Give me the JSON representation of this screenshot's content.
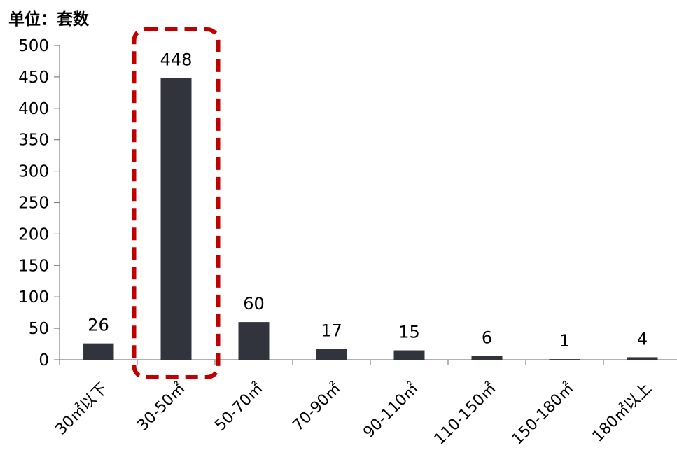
{
  "unit_label": "单位：套数",
  "chart_data": {
    "type": "bar",
    "categories": [
      "30㎡以下",
      "30-50㎡",
      "50-70㎡",
      "70-90㎡",
      "90-110㎡",
      "110-150㎡",
      "150-180㎡",
      "180㎡以上"
    ],
    "values": [
      26,
      448,
      60,
      17,
      15,
      6,
      1,
      4
    ],
    "data_labels": [
      "26",
      "448",
      "60",
      "17",
      "15",
      "6",
      "1",
      "4"
    ],
    "ylim": [
      0,
      500
    ],
    "yticks": [
      0,
      50,
      100,
      150,
      200,
      250,
      300,
      350,
      400,
      450,
      500
    ],
    "highlight_index": 1,
    "colors": {
      "bar": "#31343d",
      "highlight": "#c00000",
      "axis": "#808080"
    },
    "grid": false,
    "legend": "none"
  }
}
